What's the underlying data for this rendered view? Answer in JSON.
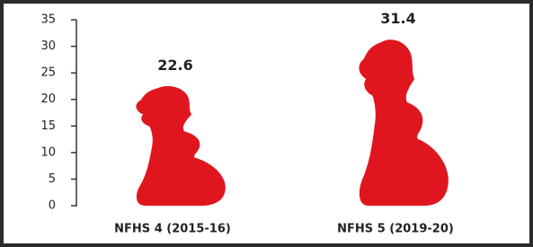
{
  "chart_data": {
    "type": "pictograph",
    "categories": [
      "NFHS 4 (2015-16)",
      "NFHS 5 (2019-20)"
    ],
    "values": [
      22.6,
      31.4
    ],
    "color": "#e0161e",
    "ylim": [
      0,
      35
    ],
    "yticks": [
      0,
      5,
      10,
      15,
      20,
      25,
      30,
      35
    ]
  }
}
